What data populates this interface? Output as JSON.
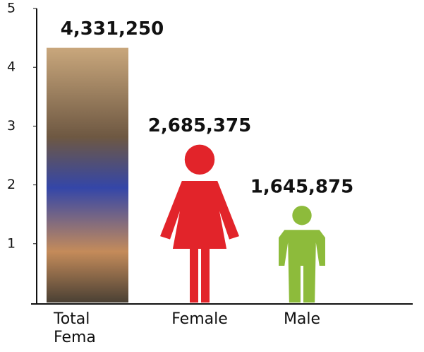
{
  "chart_data": {
    "type": "pictogram-bar",
    "categories": [
      "Total Fema",
      "Female",
      "Male"
    ],
    "values": [
      4.33125,
      2.685375,
      1.645875
    ],
    "value_labels": [
      "4,331,250",
      "2,685,375",
      "1,645,875"
    ],
    "icons": [
      "photo",
      "female",
      "male"
    ],
    "colors": [
      "#6a5a48",
      "#e2242a",
      "#8dbb3b"
    ],
    "ylim": [
      0,
      5
    ],
    "yticks": [
      1,
      2,
      3,
      4,
      5
    ]
  }
}
